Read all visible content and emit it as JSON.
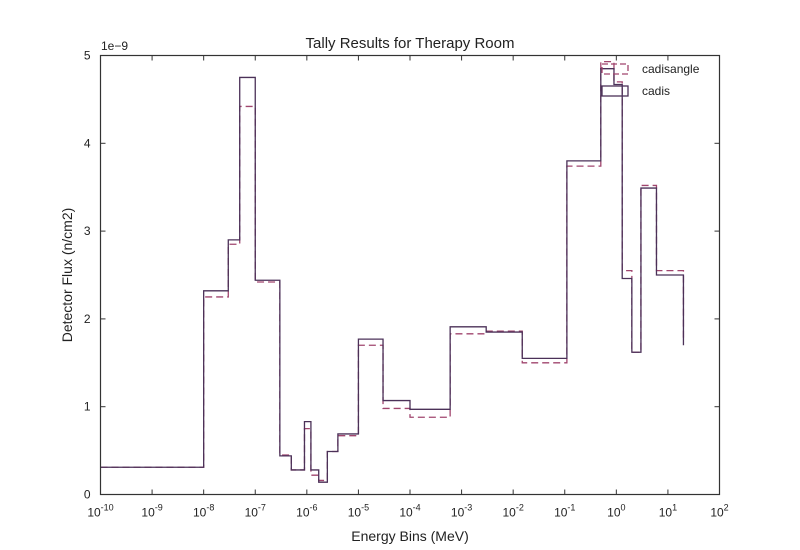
{
  "chart_data": {
    "type": "line",
    "title": "Tally Results for Therapy Room",
    "xlabel": "Energy Bins (MeV)",
    "ylabel": "Detector Flux (n/cm2)",
    "y_multiplier_label": "1e−9",
    "x_scale": "log",
    "xlim": [
      1e-10,
      100
    ],
    "ylim": [
      0,
      5
    ],
    "x_ticks": [
      {
        "base": "10",
        "exp": "-10"
      },
      {
        "base": "10",
        "exp": "-9"
      },
      {
        "base": "10",
        "exp": "-8"
      },
      {
        "base": "10",
        "exp": "-7"
      },
      {
        "base": "10",
        "exp": "-6"
      },
      {
        "base": "10",
        "exp": "-5"
      },
      {
        "base": "10",
        "exp": "-4"
      },
      {
        "base": "10",
        "exp": "-3"
      },
      {
        "base": "10",
        "exp": "-2"
      },
      {
        "base": "10",
        "exp": "-1"
      },
      {
        "base": "10",
        "exp": "0"
      },
      {
        "base": "10",
        "exp": "1"
      },
      {
        "base": "10",
        "exp": "2"
      }
    ],
    "y_ticks": [
      "0",
      "1",
      "2",
      "3",
      "4",
      "5"
    ],
    "legend_position": "top-right",
    "grid": false,
    "series": [
      {
        "name": "cadisangle",
        "color": "#a0456e",
        "style": "dashed",
        "edges": [
          1e-10,
          1e-08,
          3e-08,
          5e-08,
          1e-07,
          3e-07,
          5e-07,
          9e-07,
          1.2e-06,
          1.7e-06,
          2.5e-06,
          4e-06,
          1e-05,
          3e-05,
          0.0001,
          0.0006,
          0.003,
          0.015,
          0.11,
          0.5,
          0.9,
          1.3,
          2,
          3,
          6,
          20
        ],
        "values": [
          0.31,
          2.25,
          2.85,
          4.42,
          2.42,
          0.45,
          0.28,
          0.75,
          0.22,
          0.16,
          0.49,
          0.67,
          1.7,
          0.98,
          0.88,
          1.83,
          1.86,
          1.5,
          3.74,
          4.93,
          4.7,
          2.55,
          1.62,
          3.52,
          2.55,
          1.78
        ]
      },
      {
        "name": "cadis",
        "color": "#4b3158",
        "style": "solid",
        "edges": [
          1e-10,
          1e-08,
          3e-08,
          5e-08,
          1e-07,
          3e-07,
          5e-07,
          9e-07,
          1.2e-06,
          1.7e-06,
          2.5e-06,
          4e-06,
          1e-05,
          3e-05,
          0.0001,
          0.0006,
          0.003,
          0.015,
          0.11,
          0.5,
          0.9,
          1.3,
          2,
          3,
          6,
          20
        ],
        "values": [
          0.31,
          2.32,
          2.9,
          4.75,
          2.44,
          0.44,
          0.28,
          0.83,
          0.28,
          0.14,
          0.49,
          0.69,
          1.77,
          1.07,
          0.97,
          1.91,
          1.85,
          1.55,
          3.8,
          4.85,
          4.67,
          2.46,
          1.62,
          3.49,
          2.5,
          1.7
        ]
      }
    ]
  }
}
